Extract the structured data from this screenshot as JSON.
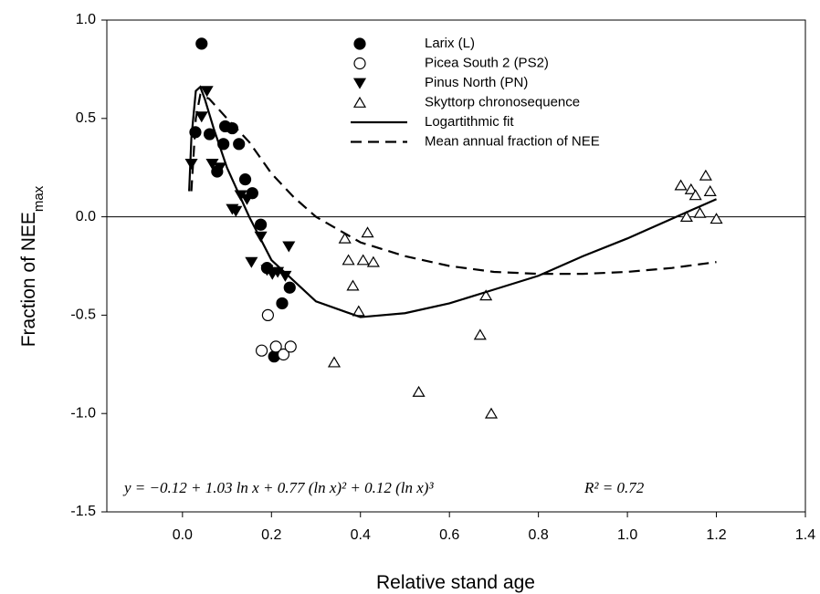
{
  "chart_data": {
    "type": "scatter",
    "x_label": "Relative stand age",
    "y_label": "Fraction of NEE",
    "y_label_sub": "max",
    "xlim": [
      -0.17,
      1.4
    ],
    "ylim": [
      -1.5,
      1.0
    ],
    "xticks": [
      {
        "value": 0,
        "label": "0.0"
      },
      0.2,
      0.4,
      0.6,
      0.8,
      {
        "value": 1,
        "label": "1.0"
      },
      1.2,
      1.4
    ],
    "yticks": [
      -1.5,
      {
        "value": -1,
        "label": "-1.0"
      },
      -0.5,
      {
        "value": 0,
        "label": "0.0"
      },
      0.5,
      {
        "value": 1,
        "label": "1.0"
      }
    ],
    "reference_line": 0,
    "legend": "upper center",
    "annotations": [
      "y = −0.12 + 1.03 ln x + 0.77 (ln x)² + 0.12 (ln x)³",
      "R² = 0.72"
    ],
    "series": [
      {
        "name": "Larix (L)",
        "color": "#000000",
        "marker": "circle-filled",
        "x": [
          0.043,
          0.029,
          0.061,
          0.078,
          0.092,
          0.096,
          0.112,
          0.127,
          0.141,
          0.157,
          0.176,
          0.19,
          0.224,
          0.241,
          0.206
        ],
        "values": [
          0.88,
          0.43,
          0.42,
          0.23,
          0.37,
          0.46,
          0.45,
          0.37,
          0.19,
          0.12,
          -0.04,
          -0.26,
          -0.44,
          -0.36,
          -0.71
        ]
      },
      {
        "name": "Picea South 2 (PS2)",
        "color": "#000000",
        "marker": "circle-open",
        "x": [
          0.192,
          0.178,
          0.21,
          0.227,
          0.243
        ],
        "values": [
          -0.5,
          -0.68,
          -0.66,
          -0.7,
          -0.66
        ]
      },
      {
        "name": "Pinus North (PN)",
        "color": "#000000",
        "marker": "triangle-down-filled",
        "x": [
          0.055,
          0.043,
          0.02,
          0.067,
          0.084,
          0.112,
          0.12,
          0.131,
          0.145,
          0.176,
          0.155,
          0.19,
          0.202,
          0.214,
          0.231,
          0.239
        ],
        "values": [
          0.64,
          0.51,
          0.27,
          0.27,
          0.25,
          0.04,
          0.03,
          0.11,
          0.09,
          -0.1,
          -0.23,
          -0.27,
          -0.29,
          -0.28,
          -0.3,
          -0.15
        ]
      },
      {
        "name": "Skyttorp chronosequence",
        "color": "#000000",
        "marker": "triangle-up-open",
        "x": [
          0.341,
          0.365,
          0.373,
          0.383,
          0.396,
          0.406,
          0.416,
          0.429,
          0.531,
          0.669,
          0.682,
          0.694,
          1.12,
          1.133,
          1.143,
          1.153,
          1.163,
          1.176,
          1.186,
          1.2
        ],
        "values": [
          -0.74,
          -0.11,
          -0.22,
          -0.35,
          -0.48,
          -0.22,
          -0.08,
          -0.23,
          -0.89,
          -0.6,
          -0.4,
          -1.0,
          0.16,
          0.0,
          0.14,
          0.11,
          0.02,
          0.21,
          0.13,
          -0.01
        ]
      },
      {
        "name": "Logartithmic fit",
        "color": "#000000",
        "linestyle": "solid",
        "x": [
          0.015,
          0.02,
          0.03,
          0.04,
          0.05,
          0.07,
          0.1,
          0.15,
          0.2,
          0.3,
          0.4,
          0.5,
          0.6,
          0.7,
          0.8,
          0.9,
          1.0,
          1.1,
          1.2
        ],
        "values": [
          0.13,
          0.4,
          0.64,
          0.66,
          0.6,
          0.45,
          0.25,
          0.0,
          -0.22,
          -0.43,
          -0.51,
          -0.49,
          -0.44,
          -0.37,
          -0.3,
          -0.2,
          -0.11,
          -0.01,
          0.09
        ]
      },
      {
        "name": "Mean annual fraction of NEE",
        "color": "#000000",
        "linestyle": "dashed",
        "x": [
          0.02,
          0.03,
          0.04,
          0.06,
          0.1,
          0.15,
          0.2,
          0.25,
          0.3,
          0.4,
          0.5,
          0.6,
          0.7,
          0.8,
          0.9,
          1.0,
          1.1,
          1.2
        ],
        "values": [
          0.13,
          0.5,
          0.62,
          0.6,
          0.5,
          0.38,
          0.22,
          0.1,
          0.0,
          -0.13,
          -0.2,
          -0.25,
          -0.28,
          -0.29,
          -0.29,
          -0.28,
          -0.26,
          -0.23
        ]
      }
    ]
  }
}
